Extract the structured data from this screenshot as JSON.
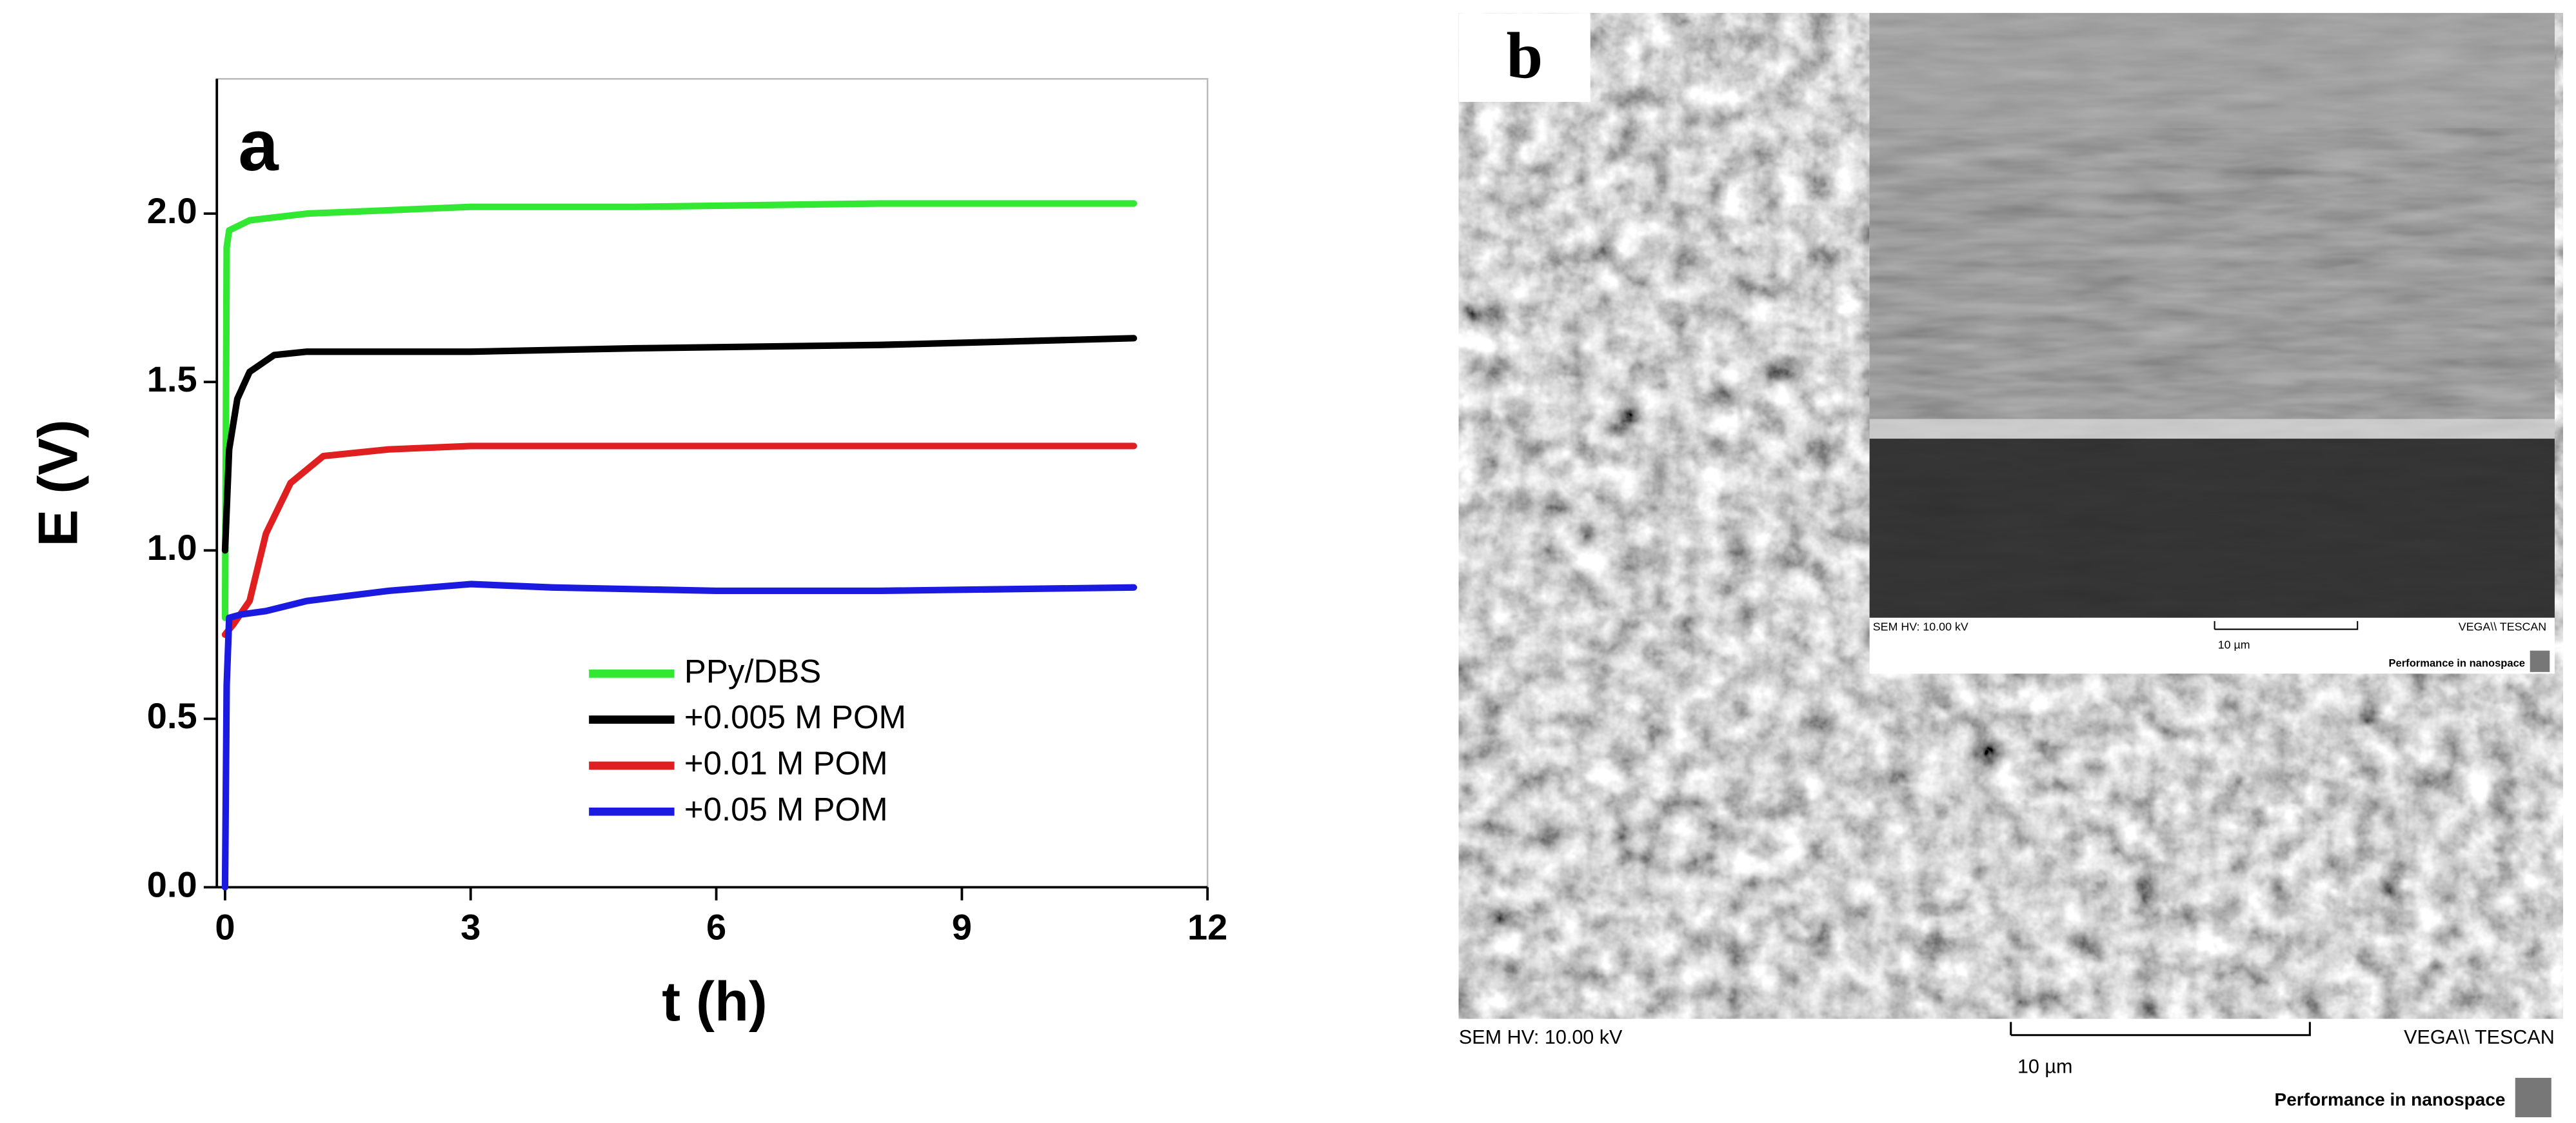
{
  "chart_data": {
    "type": "line",
    "annotation": "a",
    "xlabel": "t (h)",
    "ylabel": "E (V)",
    "xlim": [
      -0.1,
      12
    ],
    "ylim": [
      0,
      2.4
    ],
    "xticks": [
      0,
      3,
      6,
      9,
      12
    ],
    "yticks": [
      {
        "value": 0,
        "label": "0.0"
      },
      0.5,
      {
        "value": 1,
        "label": "1.0"
      },
      1.5,
      {
        "value": 2,
        "label": "2.0"
      }
    ],
    "legend": "lower center",
    "series": [
      {
        "name": "PPy/DBS",
        "color": "#33e833",
        "x": [
          0,
          0.02,
          0.05,
          0.3,
          1,
          2,
          3,
          5,
          8,
          11.1
        ],
        "values": [
          0.8,
          1.9,
          1.95,
          1.98,
          2.0,
          2.01,
          2.02,
          2.02,
          2.03,
          2.03
        ]
      },
      {
        "name": "+0.005 M POM",
        "color": "#000000",
        "x": [
          0,
          0.05,
          0.15,
          0.3,
          0.6,
          1,
          2,
          3,
          5,
          8,
          11.1
        ],
        "values": [
          1.0,
          1.3,
          1.45,
          1.53,
          1.58,
          1.59,
          1.59,
          1.59,
          1.6,
          1.61,
          1.63
        ]
      },
      {
        "name": "+0.01 M POM",
        "color": "#e02020",
        "x": [
          0,
          0.1,
          0.3,
          0.5,
          0.8,
          1.2,
          2,
          3,
          5,
          8,
          11.1
        ],
        "values": [
          0.75,
          0.78,
          0.85,
          1.05,
          1.2,
          1.28,
          1.3,
          1.31,
          1.31,
          1.31,
          1.31
        ]
      },
      {
        "name": "+0.05 M POM",
        "color": "#1a1ae0",
        "x": [
          0,
          0.02,
          0.05,
          0.2,
          0.5,
          1,
          2,
          3,
          4,
          6,
          8,
          11.1
        ],
        "values": [
          0,
          0.6,
          0.8,
          0.81,
          0.82,
          0.85,
          0.88,
          0.9,
          0.89,
          0.88,
          0.88,
          0.89
        ]
      }
    ]
  },
  "panel_b": {
    "label": "b",
    "footer": {
      "left": "SEM HV: 10.00 kV",
      "scale": "10 µm",
      "right": "VEGA\\\\ TESCAN",
      "slogan": "Performance in nanospace"
    },
    "inset": {
      "left": "SEM HV: 10.00 kV",
      "scale": "10 µm",
      "right": "VEGA\\\\ TESCAN",
      "slogan": "Performance in nanospace"
    }
  }
}
